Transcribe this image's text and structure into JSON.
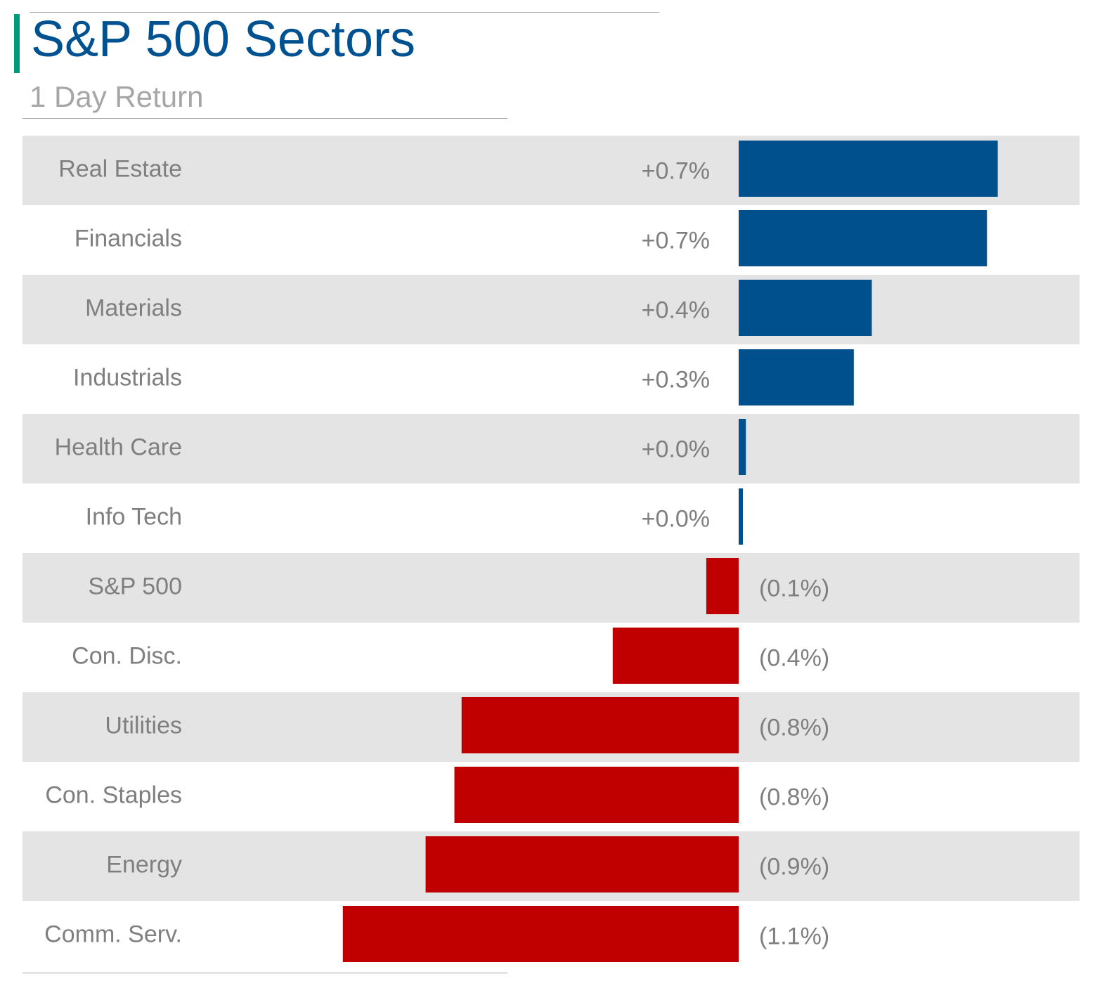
{
  "header": {
    "title": "S&P 500 Sectors",
    "subtitle": "1 Day Return"
  },
  "colors": {
    "title": "#005190",
    "accent": "#009b7d",
    "subtitle": "#a6a6a6",
    "label": "#7f7f7f",
    "positive": "#00508d",
    "negative": "#c00000",
    "band": "#e4e4e4"
  },
  "chart_data": {
    "type": "bar",
    "orientation": "horizontal",
    "title": "S&P 500 Sectors",
    "subtitle": "1 Day Return",
    "categories": [
      "Real Estate",
      "Financials",
      "Materials",
      "Industrials",
      "Health Care",
      "Info Tech",
      "S&P 500",
      "Con. Disc.",
      "Utilities",
      "Con. Staples",
      "Energy",
      "Comm. Serv."
    ],
    "values": [
      0.72,
      0.69,
      0.37,
      0.32,
      0.02,
      0.01,
      -0.09,
      -0.35,
      -0.77,
      -0.79,
      -0.87,
      -1.1
    ],
    "labels": [
      "+0.7%",
      "+0.7%",
      "+0.4%",
      "+0.3%",
      "+0.0%",
      "+0.0%",
      "(0.1%)",
      "(0.4%)",
      "(0.8%)",
      "(0.8%)",
      "(0.9%)",
      "(1.1%)"
    ],
    "unit": "%",
    "xlim": [
      -1.12,
      0.95
    ],
    "xlabel": "",
    "ylabel": "",
    "grid": false,
    "legend": "none",
    "alternating_row_bands": true
  }
}
